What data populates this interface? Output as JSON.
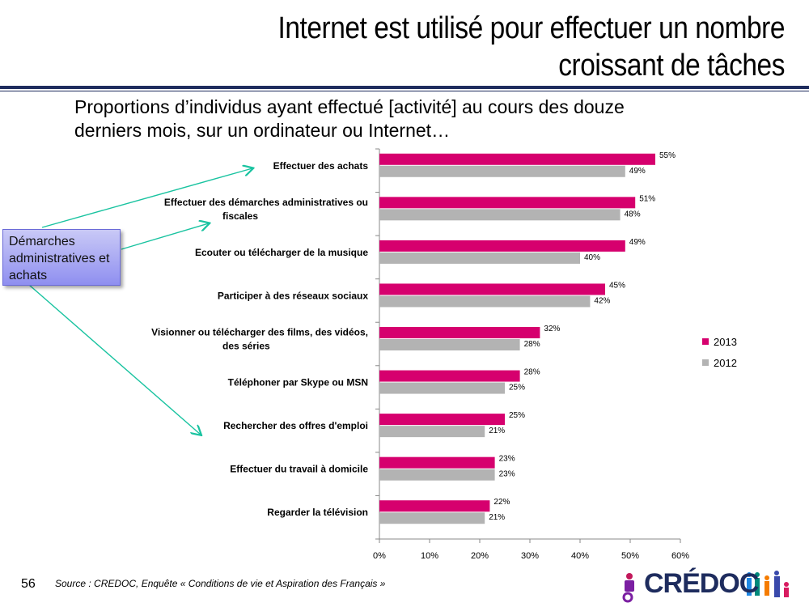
{
  "slide": {
    "title_line1": "Internet est utilisé pour effectuer un nombre",
    "title_line2": "croissant de tâches",
    "subtitle": "Proportions d’individus ayant effectué  [activité] au cours des douze derniers mois, sur un ordinateur ou Internet…",
    "callout_text": "Démarches administratives et achats",
    "page_number": "56",
    "source": "Source : CREDOC, Enquête « Conditions de vie et Aspiration des Français »",
    "logo_text": "CRÉDOC"
  },
  "colors": {
    "series_2013": "#d6006e",
    "series_2012": "#b3b3b3",
    "title_rule": "#1e2c5e",
    "arrow": "#19c3a0"
  },
  "chart_data": {
    "type": "bar",
    "orientation": "horizontal",
    "categories": [
      "Effectuer des achats",
      "Effectuer des démarches administratives ou fiscales",
      "Ecouter ou télécharger de la musique",
      "Participer à des réseaux sociaux",
      "Visionner ou télécharger des films, des vidéos, des séries",
      "Téléphoner par Skype ou MSN",
      "Rechercher des offres d'emploi",
      "Effectuer du travail à domicile",
      "Regarder la télévision"
    ],
    "series": [
      {
        "name": "2013",
        "values": [
          55,
          51,
          49,
          45,
          32,
          28,
          25,
          23,
          22
        ]
      },
      {
        "name": "2012",
        "values": [
          49,
          48,
          40,
          42,
          28,
          25,
          21,
          23,
          21
        ]
      }
    ],
    "xlim": [
      0,
      60
    ],
    "xticks": [
      "0%",
      "10%",
      "20%",
      "30%",
      "40%",
      "50%",
      "60%"
    ],
    "value_suffix": "%",
    "legend_position": "right",
    "grid": false
  }
}
